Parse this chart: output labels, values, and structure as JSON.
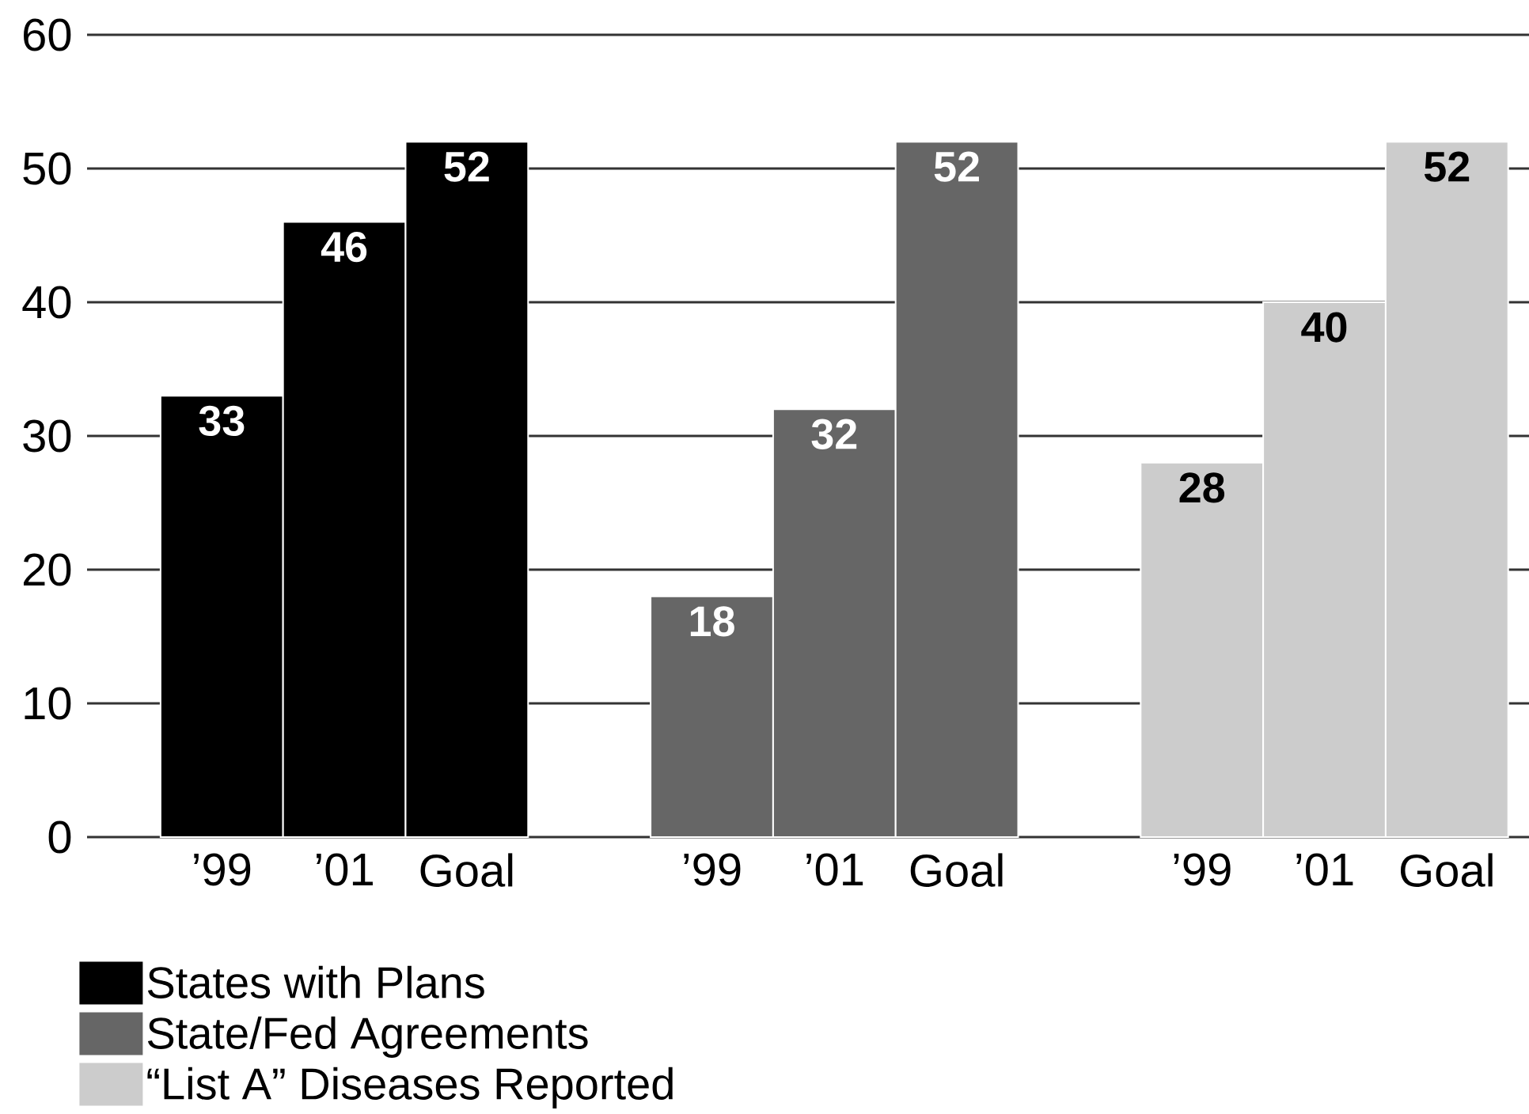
{
  "chart_data": {
    "type": "bar",
    "categories": [
      "’99",
      "’01",
      "Goal",
      null,
      "’99",
      "’01",
      "Goal",
      null,
      "’99",
      "’01",
      "Goal"
    ],
    "series": [
      {
        "name": "States with Plans",
        "color": "#000000",
        "values": [
          33,
          46,
          52,
          null,
          null,
          null,
          null,
          null,
          null,
          null,
          null
        ]
      },
      {
        "name": "State/Fed Agreements",
        "color": "#666666",
        "values": [
          null,
          null,
          null,
          null,
          18,
          32,
          52,
          null,
          null,
          null,
          null
        ]
      },
      {
        "name": "“List A” Diseases Reported",
        "color": "#cccccc",
        "values": [
          null,
          null,
          null,
          null,
          null,
          null,
          null,
          null,
          28,
          40,
          52
        ]
      }
    ],
    "ylim": [
      0,
      60
    ],
    "yticks": [
      0,
      10,
      20,
      30,
      40,
      50,
      60
    ],
    "grid": "y",
    "legend": "bottom left",
    "data_labels": true
  }
}
